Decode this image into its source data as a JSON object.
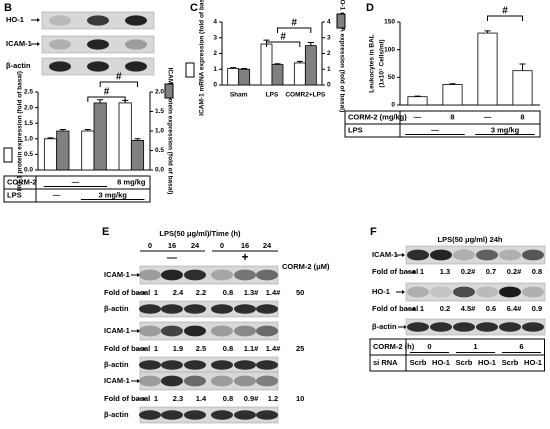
{
  "chart_data": [
    {
      "type": "bar",
      "panel": "B",
      "blot_labels": [
        "HO-1",
        "ICAM-1",
        "β-actin"
      ],
      "categories": [
        null,
        null,
        null
      ],
      "ylabel": "HO-1 protein expression (fold of basal)",
      "y2label": "ICAM-1 protein expression (fold of basal)",
      "ylim": [
        0,
        2.5
      ],
      "yticks": [
        {
          "value": 0,
          "label": "0.0"
        },
        {
          "value": 0.5,
          "label": "0.5"
        },
        {
          "value": 1,
          "label": "1.0"
        },
        {
          "value": 1.5,
          "label": "1.5"
        },
        {
          "value": 2,
          "label": "2.0"
        },
        {
          "value": 2.5,
          "label": "2.5"
        }
      ],
      "y2lim": [
        0,
        2.0
      ],
      "y2ticks": [
        {
          "value": 0,
          "label": "0.0"
        },
        {
          "value": 0.5,
          "label": "0.5"
        },
        {
          "value": 1,
          "label": "1.0"
        },
        {
          "value": 1.5,
          "label": "1.5"
        },
        {
          "value": 2,
          "label": "2.0"
        }
      ],
      "series": [
        {
          "color": "#ffffff",
          "values": [
            1.0,
            1.25,
            2.15
          ],
          "errors": [
            0.03,
            0.05,
            0.08
          ]
        },
        {
          "color": "#808080",
          "axis": "y2",
          "values": [
            1.0,
            1.72,
            0.76
          ],
          "errors": [
            0.04,
            0.08,
            0.04
          ]
        }
      ],
      "annotations": [
        "#",
        "#"
      ],
      "table": {
        "rows": [
          [
            "CORM-2",
            "—",
            "8 mg/kg"
          ],
          [
            "LPS",
            "—",
            "3 mg/kg"
          ]
        ]
      }
    },
    {
      "type": "bar",
      "panel": "C",
      "categories": [
        "Sham",
        "LPS",
        "COMR2+LPS"
      ],
      "ylabel": "ICAM-1 mRNA expression (fold of basal)",
      "y2label": "HO-1 mRNA expression (fold of basal)",
      "ylim": [
        0,
        4
      ],
      "yticks": [
        0,
        1,
        2,
        3,
        4
      ],
      "y2lim": [
        0,
        4
      ],
      "y2ticks": [
        0,
        1,
        2,
        3,
        4
      ],
      "series": [
        {
          "color": "#ffffff",
          "values": [
            1.05,
            2.6,
            1.4
          ],
          "errors": [
            0.05,
            0.25,
            0.1
          ]
        },
        {
          "color": "#808080",
          "axis": "y2",
          "values": [
            1.0,
            1.3,
            2.5
          ],
          "errors": [
            0.05,
            0.05,
            0.2
          ]
        }
      ],
      "annotations": [
        "#",
        "#"
      ]
    },
    {
      "type": "bar",
      "panel": "D",
      "categories": [
        null,
        null,
        null,
        null
      ],
      "ylabel": "Leukocytes in BAL",
      "ylabel2": "(1x10⁷ Cells/ml)",
      "ylim": [
        0,
        150
      ],
      "yticks": [
        0,
        50,
        100,
        150
      ],
      "series": [
        {
          "color": "#ffffff",
          "values": [
            15,
            37,
            130,
            62
          ],
          "errors": [
            1,
            1.5,
            4,
            12
          ]
        }
      ],
      "annotations": [
        "#"
      ],
      "table": {
        "rows": [
          [
            "CORM-2 (mg/kg)",
            "—",
            8,
            "—",
            8
          ],
          [
            "LPS",
            "—",
            "3 mg/kg"
          ]
        ]
      }
    }
  ],
  "panel_E": {
    "panel": "E",
    "title": "LPS(50 μg/ml)/Time (h)",
    "times": [
      0,
      16,
      24,
      0,
      16,
      24
    ],
    "corm_states": [
      "—",
      "+"
    ],
    "corm_label": "CORM-2 (μM)",
    "fold_label": "Fold of basal",
    "blocks": [
      {
        "target": "ICAM-1",
        "control": "β-actin",
        "dose": 50,
        "fold": [
          1,
          2.4,
          2.2,
          0.8,
          "1.3#",
          "1.4#"
        ]
      },
      {
        "target": "ICAM-1",
        "control": "β-actin",
        "dose": 25,
        "fold": [
          1,
          1.9,
          2.5,
          0.8,
          "1.1#",
          "1.4#"
        ]
      },
      {
        "target": "ICAM-1",
        "control": "β-actin",
        "dose": 10,
        "fold": [
          1,
          2.3,
          1.4,
          0.8,
          "0.9#",
          1.2
        ]
      }
    ]
  },
  "panel_F": {
    "panel": "F",
    "title": "LPS(50 μg/ml) 24h",
    "fold_label": "Fold of basal",
    "blots": [
      {
        "target": "ICAM-1",
        "fold": [
          1,
          1.3,
          "0.2#",
          0.7,
          "0.2#",
          0.8
        ]
      },
      {
        "target": "HO-1",
        "fold": [
          1,
          0.2,
          "4.5#",
          0.6,
          "6.4#",
          0.9
        ]
      }
    ],
    "control": "β-actin",
    "table": {
      "rows": [
        [
          "CORM-2 (h)",
          0,
          1,
          6
        ],
        [
          "si RNA",
          "Scrb",
          "HO-1",
          "Scrb",
          "HO-1",
          "Scrb",
          "HO-1"
        ]
      ]
    }
  }
}
